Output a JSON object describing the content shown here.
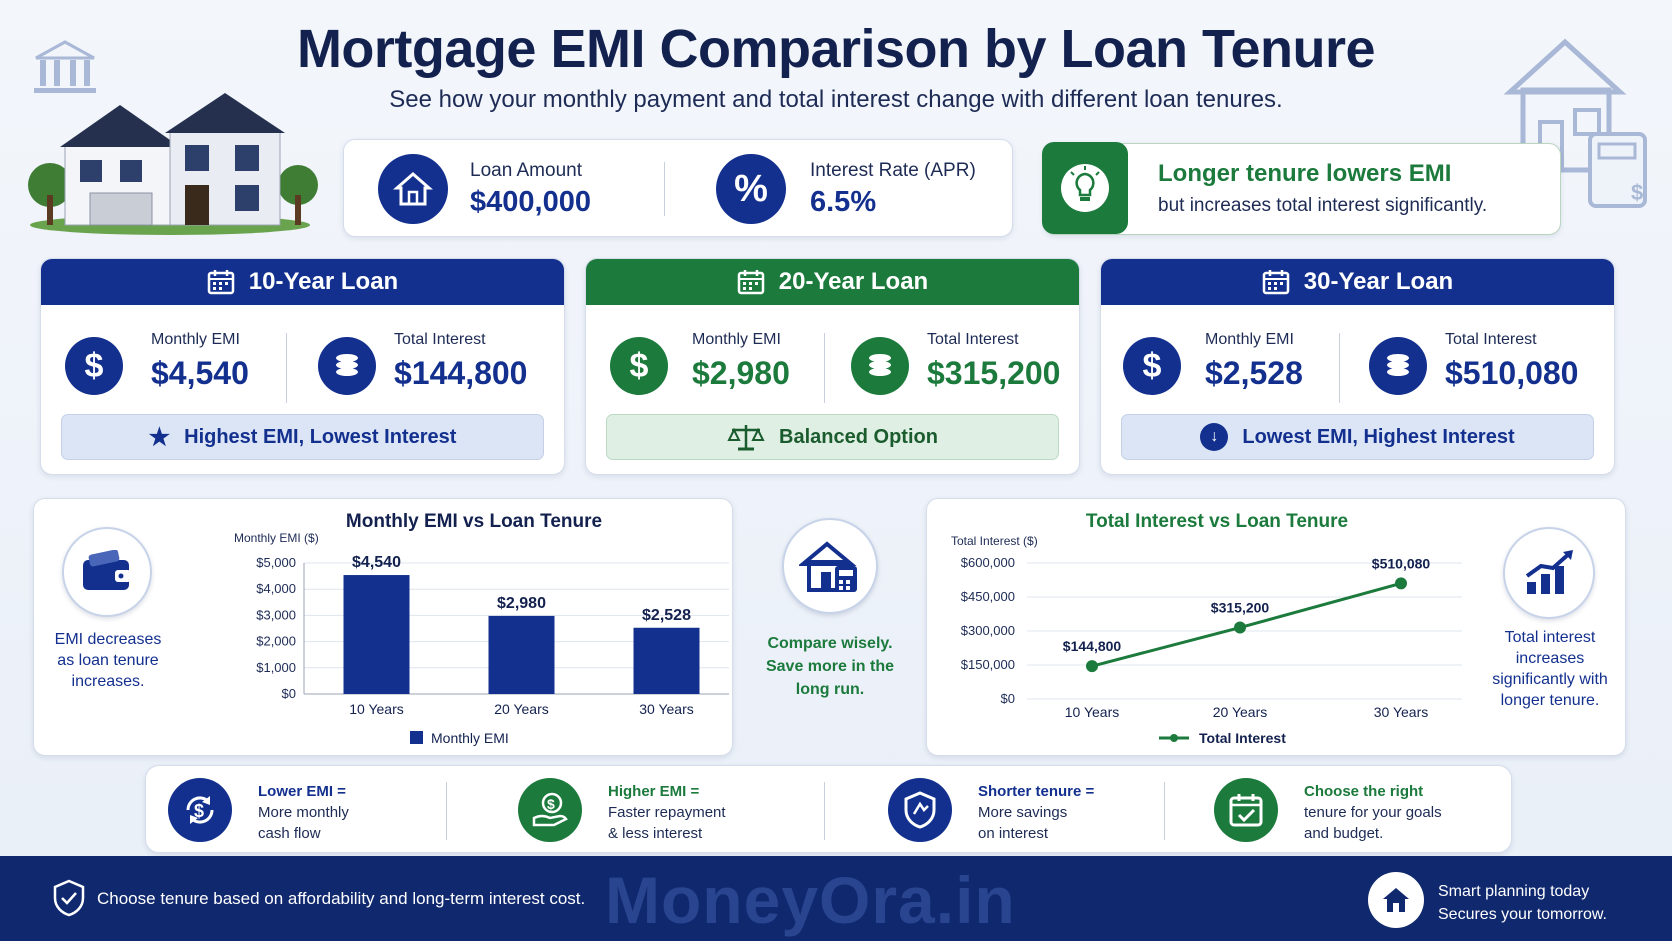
{
  "header": {
    "title": "Mortgage EMI Comparison by Loan Tenure",
    "subtitle": "See how your monthly payment and total interest change with different loan tenures."
  },
  "summary": {
    "loan_label": "Loan Amount",
    "loan_value": "$400,000",
    "rate_label": "Interest Rate (APR)",
    "rate_value": "6.5%"
  },
  "tip": {
    "title": "Longer tenure lowers EMI",
    "text": "but increases total interest significantly."
  },
  "tenures": [
    {
      "title": "10-Year Loan",
      "emi_label": "Monthly EMI",
      "emi": "$4,540",
      "interest_label": "Total Interest",
      "interest": "$144,800",
      "tag": "Highest EMI, Lowest Interest"
    },
    {
      "title": "20-Year Loan",
      "emi_label": "Monthly EMI",
      "emi": "$2,980",
      "interest_label": "Total Interest",
      "interest": "$315,200",
      "tag": "Balanced Option"
    },
    {
      "title": "30-Year Loan",
      "emi_label": "Monthly EMI",
      "emi": "$2,528",
      "interest_label": "Total Interest",
      "interest": "$510,080",
      "tag": "Lowest EMI, Highest Interest"
    }
  ],
  "side_notes": {
    "left": "EMI decreases as loan tenure increases.",
    "center": "Compare wisely. Save more in the long run.",
    "right": "Total interest increases significantly with longer tenure."
  },
  "chart_data": [
    {
      "type": "bar",
      "title": "Monthly EMI vs Loan Tenure",
      "ylabel": "Monthly EMI ($)",
      "categories": [
        "10 Years",
        "20 Years",
        "30 Years"
      ],
      "series": [
        {
          "name": "Monthly EMI",
          "values": [
            4540,
            2980,
            2528
          ]
        }
      ],
      "data_labels": [
        "$4,540",
        "$2,980",
        "$2,528"
      ],
      "ylim": [
        0,
        5000
      ],
      "yticks": [
        "$0",
        "$1,000",
        "$2,000",
        "$3,000",
        "$4,000",
        "$5,000"
      ],
      "tick_values": [
        0,
        1000,
        2000,
        3000,
        4000,
        5000
      ],
      "grid": true,
      "legend": "bottom",
      "color": "#13308f"
    },
    {
      "type": "line",
      "title": "Total Interest vs Loan Tenure",
      "ylabel": "Total Interest ($)",
      "categories": [
        "10 Years",
        "20 Years",
        "30 Years"
      ],
      "series": [
        {
          "name": "Total Interest",
          "values": [
            144800,
            315200,
            510080
          ]
        }
      ],
      "data_labels": [
        "$144,800",
        "$315,200",
        "$510,080"
      ],
      "ylim": [
        0,
        600000
      ],
      "yticks": [
        "$0",
        "$150,000",
        "$300,000",
        "$450,000",
        "$600,000"
      ],
      "tick_values": [
        0,
        150000,
        300000,
        450000,
        600000
      ],
      "grid": true,
      "legend": "bottom",
      "color": "#1b7a3c"
    }
  ],
  "tips_row": [
    {
      "title": "Lower EMI =",
      "lines": [
        "More monthly",
        "cash flow"
      ],
      "icon": "cycle-dollar-icon"
    },
    {
      "title": "Higher EMI =",
      "lines": [
        "Faster repayment",
        "& less interest"
      ],
      "icon": "hand-coin-icon"
    },
    {
      "title": "Shorter tenure =",
      "lines": [
        "More savings",
        "on interest"
      ],
      "icon": "shield-icon"
    },
    {
      "title": "Choose the right",
      "lines": [
        "tenure for your goals",
        "and budget."
      ],
      "icon": "calendar-check-icon"
    }
  ],
  "footer": {
    "left": "Choose tenure based on affordability and long-term interest cost.",
    "brand": "MoneyOra.in",
    "right1": "Smart planning today",
    "right2": "Secures your tomorrow."
  },
  "colors": {
    "navy": "#13308f",
    "green": "#1b7a3c",
    "light_blue": "#dbe5f5",
    "light_green": "#e0efe4"
  }
}
